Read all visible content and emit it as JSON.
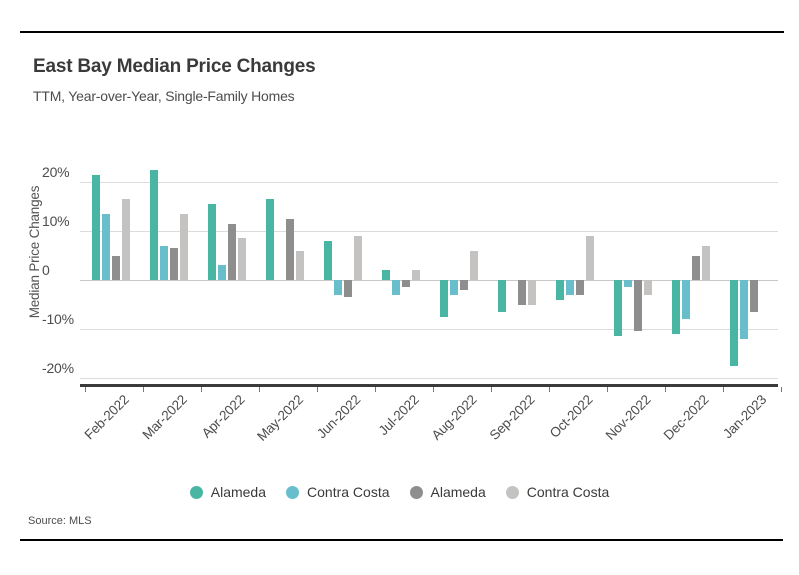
{
  "source": {
    "label": "Source: MLS"
  },
  "chart_data": {
    "type": "bar",
    "title": "East Bay Median Price Changes",
    "subtitle": "TTM, Year-over-Year, Single-Family Homes",
    "ylabel": "Median Price Changes",
    "ylim": [
      -22,
      24
    ],
    "grid": true,
    "legend_position": "bottom",
    "yticks": [
      {
        "value": 20,
        "label": "20%"
      },
      {
        "value": 10,
        "label": "10%"
      },
      {
        "value": 0,
        "label": "0"
      },
      {
        "value": -10,
        "label": "-10%"
      },
      {
        "value": -20,
        "label": "-20%"
      }
    ],
    "categories": [
      "Feb-2022",
      "Mar-2022",
      "Apr-2022",
      "May-2022",
      "Jun-2022",
      "Jul-2022",
      "Aug-2022",
      "Sep-2022",
      "Oct-2022",
      "Nov-2022",
      "Dec-2022",
      "Jan-2023"
    ],
    "series": [
      {
        "name": "Alameda",
        "color": "#49B6A3",
        "values": [
          21.5,
          22.5,
          15.5,
          16.5,
          8,
          2,
          -7.5,
          -6.5,
          -4,
          -11.5,
          -11,
          -17.5
        ]
      },
      {
        "name": "Contra Costa",
        "color": "#68BFCB",
        "values": [
          13.5,
          7,
          3,
          0,
          -3,
          -3,
          -3,
          0,
          -3,
          -1.5,
          -8,
          -12
        ]
      },
      {
        "name": "Alameda",
        "color": "#8E8E8E",
        "values": [
          5,
          6.5,
          11.5,
          12.5,
          -3.5,
          -1.5,
          -2,
          -5,
          -3,
          -10.5,
          5,
          -6.5
        ]
      },
      {
        "name": "Contra Costa",
        "color": "#C4C3C2",
        "values": [
          16.5,
          13.5,
          8.5,
          6,
          9,
          2,
          6,
          -5,
          9,
          -3,
          7,
          0
        ]
      }
    ]
  }
}
